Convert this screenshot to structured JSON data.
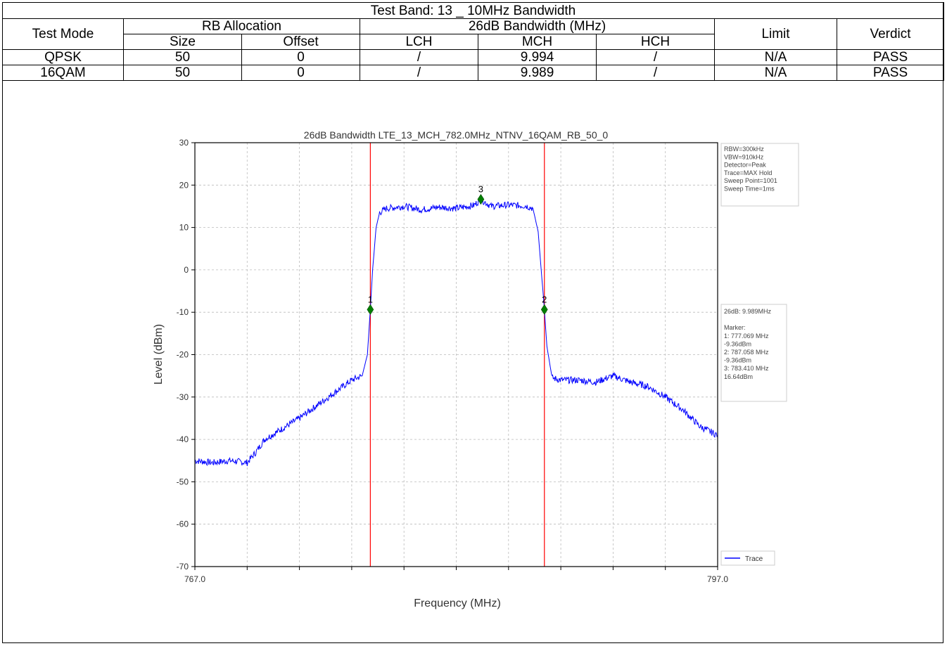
{
  "table": {
    "caption": "Test Band: 13 _ 10MHz Bandwidth",
    "headers": {
      "test_mode": "Test Mode",
      "rb_allocation": "RB Allocation",
      "bandwidth": "26dB Bandwidth (MHz)",
      "limit": "Limit",
      "verdict": "Verdict",
      "size": "Size",
      "offset": "Offset",
      "lch": "LCH",
      "mch": "MCH",
      "hch": "HCH"
    },
    "rows": [
      {
        "mode": "QPSK",
        "size": "50",
        "offset": "0",
        "lch": "/",
        "mch": "9.994",
        "hch": "/",
        "limit": "N/A",
        "verdict": "PASS"
      },
      {
        "mode": "16QAM",
        "size": "50",
        "offset": "0",
        "lch": "/",
        "mch": "9.989",
        "hch": "/",
        "limit": "N/A",
        "verdict": "PASS"
      }
    ]
  },
  "chart_data": {
    "type": "line",
    "title": "26dB Bandwidth LTE_13_MCH_782.0MHz_NTNV_16QAM_RB_50_0",
    "xlabel": "Frequency (MHz)",
    "ylabel": "Level (dBm)",
    "xlim": [
      767.0,
      797.0
    ],
    "ylim": [
      -70,
      30
    ],
    "x_tick_labels": [
      "767.0",
      "797.0"
    ],
    "y_ticks": [
      30,
      20,
      10,
      0,
      -10,
      -20,
      -30,
      -40,
      -50,
      -60,
      -70
    ],
    "grid": true,
    "legend_position": "bottom-right",
    "series": [
      {
        "name": "Trace",
        "color": "#0000ff",
        "x": [
          767.0,
          768.0,
          769.0,
          770.0,
          770.5,
          771.0,
          772.0,
          773.0,
          774.0,
          775.0,
          776.0,
          776.6,
          776.9,
          777.069,
          777.2,
          777.4,
          777.6,
          778.0,
          779.0,
          780.0,
          781.0,
          782.0,
          783.0,
          783.41,
          784.0,
          785.0,
          786.0,
          786.4,
          786.7,
          787.058,
          787.2,
          787.5,
          788.0,
          789.0,
          790.0,
          791.0,
          792.0,
          793.0,
          794.0,
          795.0,
          796.0,
          797.0
        ],
        "y": [
          -45,
          -45.5,
          -45,
          -45.5,
          -43,
          -40,
          -37.5,
          -35,
          -32,
          -29,
          -26,
          -25,
          -20,
          -9.36,
          0,
          10,
          13.5,
          14.5,
          15,
          14.2,
          14.8,
          14.5,
          15.2,
          16.64,
          15,
          15.3,
          15.1,
          14.5,
          9,
          -9.36,
          -18,
          -25.5,
          -26,
          -26,
          -26.5,
          -25,
          -26.5,
          -27.5,
          -30,
          -33,
          -37,
          -39
        ]
      }
    ],
    "markers": [
      {
        "label": "1",
        "x": 777.069,
        "y": -9.36
      },
      {
        "label": "2",
        "x": 787.058,
        "y": -9.36
      },
      {
        "label": "3",
        "x": 783.41,
        "y": 16.64
      }
    ],
    "vertical_lines": [
      777.069,
      787.058
    ],
    "vertical_line_color": "#ff0000",
    "marker_color": "#007f00",
    "settings_lines": [
      "RBW=300kHz",
      "VBW=910kHz",
      "Detector=Peak",
      "Trace=MAX Hold",
      "Sweep Point=1001",
      "Sweep Time=1ms"
    ],
    "marker_box_lines": [
      "26dB: 9.989MHz",
      "",
      "Marker:",
      "1: 777.069 MHz",
      "   -9.36dBm",
      "2: 787.058 MHz",
      "   -9.36dBm",
      "3: 783.410 MHz",
      "   16.64dBm"
    ]
  }
}
